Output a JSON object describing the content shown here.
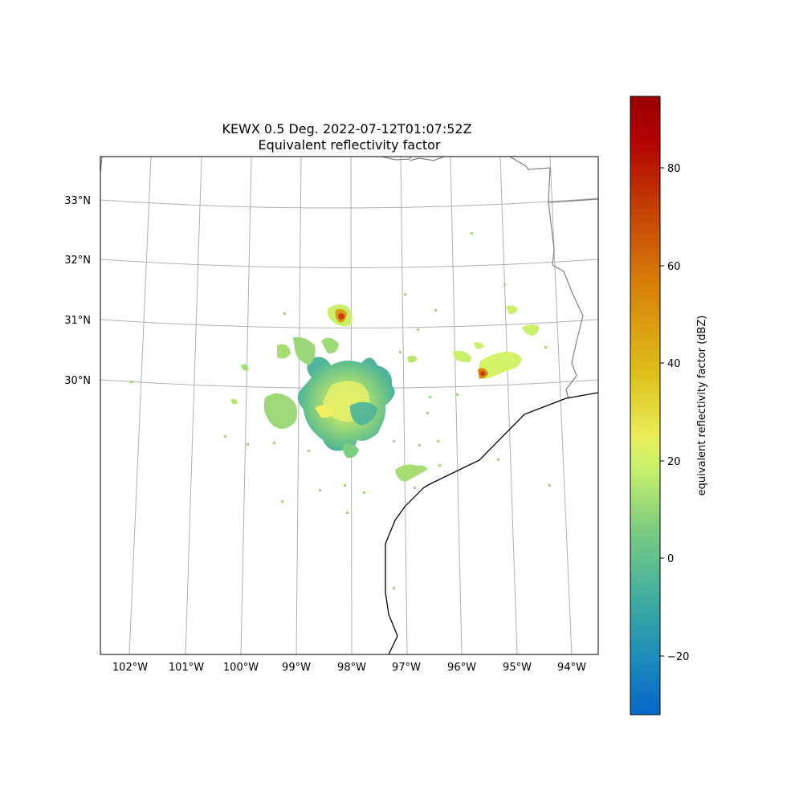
{
  "title": {
    "line1": "KEWX 0.5 Deg. 2022-07-12T01:07:52Z",
    "line2": "Equivalent reflectivity factor"
  },
  "map": {
    "lon_ticks": [
      "102°W",
      "101°W",
      "100°W",
      "99°W",
      "98°W",
      "97°W",
      "96°W",
      "95°W",
      "94°W"
    ],
    "lat_ticks": [
      "33°N",
      "32°N",
      "31°N",
      "30°N"
    ],
    "gridlines": true,
    "features": [
      "state-borders",
      "coastline"
    ]
  },
  "colorbar": {
    "label": "equivalent reflectivity factor (dBZ)",
    "ticks": [
      "80",
      "60",
      "40",
      "20",
      "0",
      "−20"
    ],
    "range_dbz": [
      -32,
      94.5
    ],
    "colormap_stops": [
      "#0567c8",
      "#1f8fb8",
      "#46b19c",
      "#7dcc80",
      "#c9f06a",
      "#e9ef5a",
      "#ddc01a",
      "#d77e08",
      "#c33f05",
      "#b10202",
      "#9a0000"
    ]
  },
  "radar": {
    "site": "KEWX",
    "elevation": "0.5 Deg.",
    "time": "2022-07-12T01:07:52Z"
  }
}
